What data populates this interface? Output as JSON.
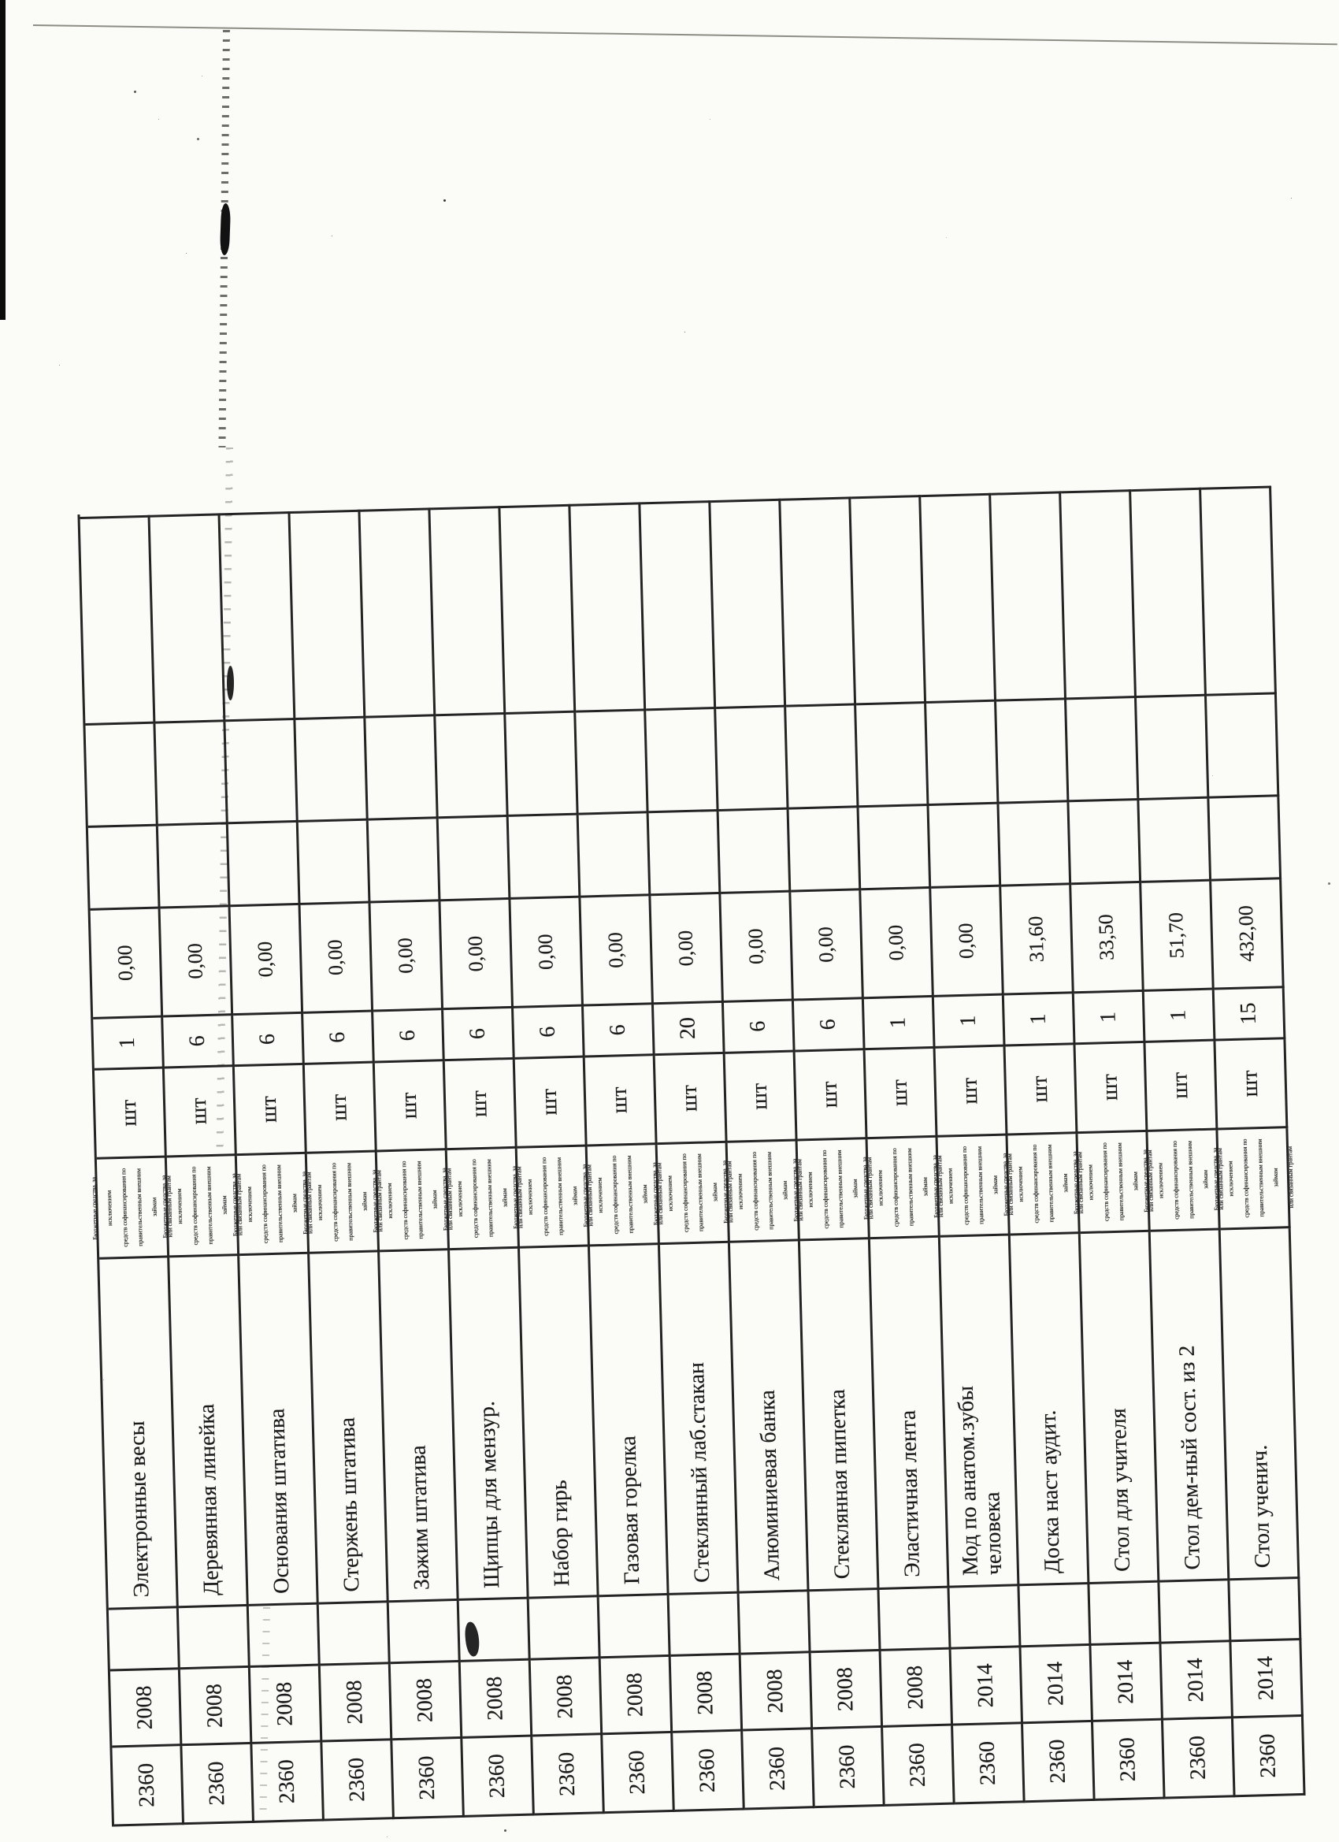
{
  "table": {
    "funding_note": "Бюджетные средства, за исключением\nсредств софинансирования по\nправительственным внешним займам\nили связанным грантам",
    "rows": [
      {
        "code": "2360",
        "year": "2008",
        "name": "Электронные весы",
        "unit": "шт",
        "qty": "1",
        "price": "0,00"
      },
      {
        "code": "2360",
        "year": "2008",
        "name": "Деревянная линейка",
        "unit": "шт",
        "qty": "6",
        "price": "0,00"
      },
      {
        "code": "2360",
        "year": "2008",
        "name": "Основания штатива",
        "unit": "шт",
        "qty": "6",
        "price": "0,00"
      },
      {
        "code": "2360",
        "year": "2008",
        "name": "Стержень штатива",
        "unit": "шт",
        "qty": "6",
        "price": "0,00"
      },
      {
        "code": "2360",
        "year": "2008",
        "name": "Зажим штатива",
        "unit": "шт",
        "qty": "6",
        "price": "0,00"
      },
      {
        "code": "2360",
        "year": "2008",
        "name": "Щипцы для мензур.",
        "unit": "шт",
        "qty": "6",
        "price": "0,00"
      },
      {
        "code": "2360",
        "year": "2008",
        "name": "Набор гирь",
        "unit": "шт",
        "qty": "6",
        "price": "0,00"
      },
      {
        "code": "2360",
        "year": "2008",
        "name": "Газовая горелка",
        "unit": "шт",
        "qty": "6",
        "price": "0,00"
      },
      {
        "code": "2360",
        "year": "2008",
        "name": "Стеклянный лаб.стакан",
        "unit": "шт",
        "qty": "20",
        "price": "0,00"
      },
      {
        "code": "2360",
        "year": "2008",
        "name": "Алюминиевая банка",
        "unit": "шт",
        "qty": "6",
        "price": "0,00"
      },
      {
        "code": "2360",
        "year": "2008",
        "name": "Стеклянная пипетка",
        "unit": "шт",
        "qty": "6",
        "price": "0,00"
      },
      {
        "code": "2360",
        "year": "2008",
        "name": "Эластичная лента",
        "unit": "шт",
        "qty": "1",
        "price": "0,00"
      },
      {
        "code": "2360",
        "year": "2014",
        "name": "Мод по анатом.зубы\nчеловека",
        "unit": "шт",
        "qty": "1",
        "price": "0,00"
      },
      {
        "code": "2360",
        "year": "2014",
        "name": "Доска наст аудит.",
        "unit": "шт",
        "qty": "1",
        "price": "31,60"
      },
      {
        "code": "2360",
        "year": "2014",
        "name": "Стол для учителя",
        "unit": "шт",
        "qty": "1",
        "price": "33,50"
      },
      {
        "code": "2360",
        "year": "2014",
        "name": "Стол дем-ный сост. из 2",
        "unit": "шт",
        "qty": "1",
        "price": "51,70"
      },
      {
        "code": "2360",
        "year": "2014",
        "name": "Стол ученич.",
        "unit": "шт",
        "qty": "15",
        "price": "432,00"
      }
    ]
  }
}
